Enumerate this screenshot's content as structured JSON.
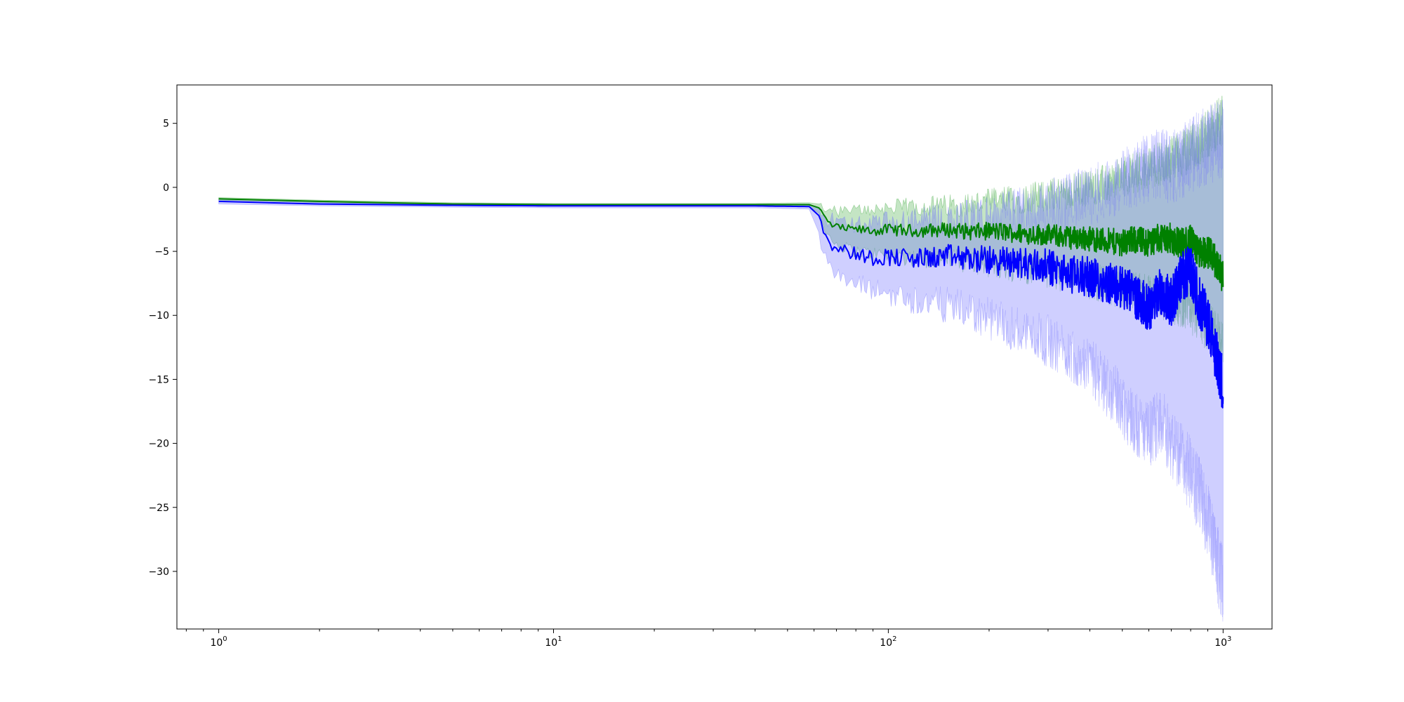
{
  "chart_data": {
    "type": "line",
    "title": "",
    "xlabel": "",
    "ylabel": "",
    "xscale": "log",
    "xlim": [
      0.75,
      1400
    ],
    "ylim": [
      -34.5,
      8.0
    ],
    "grid": false,
    "legend": "none",
    "x_ticks": [
      {
        "base": "10",
        "exp": "0",
        "value": 1
      },
      {
        "base": "10",
        "exp": "1",
        "value": 10
      },
      {
        "base": "10",
        "exp": "2",
        "value": 100
      },
      {
        "base": "10",
        "exp": "3",
        "value": 1000
      }
    ],
    "y_ticks": [
      {
        "label": "5",
        "value": 5
      },
      {
        "label": "0",
        "value": 0
      },
      {
        "label": "−5",
        "value": -5
      },
      {
        "label": "−10",
        "value": -10
      },
      {
        "label": "−15",
        "value": -15
      },
      {
        "label": "−20",
        "value": -20
      },
      {
        "label": "−25",
        "value": -25
      },
      {
        "label": "−30",
        "value": -30
      }
    ],
    "series": [
      {
        "color": "#008000",
        "band_color": "#2ca02c",
        "x": [
          1,
          2,
          5,
          10,
          20,
          40,
          58,
          62,
          65,
          68,
          72,
          80,
          90,
          100,
          120,
          150,
          180,
          200,
          250,
          300,
          350,
          400,
          450,
          500,
          550,
          600,
          650,
          700,
          750,
          800,
          850,
          900,
          950,
          1000
        ],
        "y": [
          -0.9,
          -1.1,
          -1.3,
          -1.35,
          -1.35,
          -1.35,
          -1.35,
          -1.6,
          -2.5,
          -3.0,
          -3.2,
          -3.3,
          -3.4,
          -3.3,
          -3.4,
          -3.3,
          -3.5,
          -3.4,
          -3.6,
          -3.7,
          -3.9,
          -4.0,
          -4.2,
          -4.3,
          -4.1,
          -4.3,
          -3.9,
          -4.0,
          -4.4,
          -4.2,
          -5.2,
          -5.0,
          -5.8,
          -7.0
        ],
        "lower": [
          -1.0,
          -1.2,
          -1.4,
          -1.45,
          -1.45,
          -1.45,
          -1.5,
          -2.0,
          -3.3,
          -4.2,
          -4.6,
          -5.0,
          -5.2,
          -5.3,
          -5.5,
          -5.6,
          -5.8,
          -6.0,
          -6.3,
          -6.6,
          -7.0,
          -7.3,
          -7.6,
          -8.0,
          -8.2,
          -8.5,
          -8.6,
          -8.8,
          -9.2,
          -9.5,
          -10.5,
          -10.8,
          -11.5,
          -12.5
        ],
        "upper": [
          -0.8,
          -1.0,
          -1.2,
          -1.25,
          -1.25,
          -1.25,
          -1.2,
          -1.3,
          -1.6,
          -1.8,
          -1.9,
          -1.8,
          -1.7,
          -1.6,
          -1.5,
          -1.4,
          -1.3,
          -1.1,
          -0.9,
          -0.6,
          -0.3,
          0.0,
          0.3,
          0.8,
          1.2,
          1.6,
          1.8,
          2.2,
          2.6,
          3.0,
          3.5,
          4.2,
          4.8,
          5.3
        ]
      },
      {
        "color": "#0000ff",
        "band_color": "#6b6bff",
        "x": [
          1,
          2,
          5,
          10,
          20,
          40,
          58,
          62,
          65,
          68,
          72,
          80,
          90,
          100,
          120,
          150,
          180,
          200,
          250,
          300,
          350,
          400,
          450,
          500,
          550,
          600,
          650,
          700,
          750,
          800,
          850,
          900,
          950,
          1000
        ],
        "y": [
          -1.1,
          -1.3,
          -1.4,
          -1.45,
          -1.45,
          -1.45,
          -1.5,
          -2.2,
          -3.8,
          -4.5,
          -4.8,
          -5.2,
          -5.5,
          -5.4,
          -5.6,
          -5.4,
          -5.6,
          -5.7,
          -5.9,
          -6.2,
          -6.8,
          -7.0,
          -7.4,
          -7.8,
          -8.5,
          -9.5,
          -8.0,
          -9.0,
          -7.0,
          -6.5,
          -9.0,
          -10.5,
          -13.0,
          -15.5
        ],
        "lower": [
          -1.3,
          -1.45,
          -1.55,
          -1.6,
          -1.6,
          -1.6,
          -1.7,
          -3.5,
          -5.6,
          -6.6,
          -7.2,
          -7.6,
          -8.0,
          -8.3,
          -8.8,
          -9.2,
          -9.8,
          -10.3,
          -11.2,
          -12.0,
          -13.0,
          -14.0,
          -15.5,
          -17.0,
          -18.5,
          -19.5,
          -18.0,
          -20.0,
          -21.0,
          -22.5,
          -24.0,
          -26.0,
          -29.0,
          -31.0
        ],
        "upper": [
          -0.9,
          -1.15,
          -1.25,
          -1.3,
          -1.3,
          -1.3,
          -1.3,
          -1.6,
          -2.4,
          -2.6,
          -2.8,
          -2.9,
          -3.0,
          -2.9,
          -2.8,
          -2.6,
          -2.4,
          -2.2,
          -1.8,
          -1.4,
          -1.0,
          -0.6,
          -0.2,
          0.4,
          1.0,
          1.6,
          1.8,
          1.5,
          2.0,
          2.5,
          3.0,
          3.3,
          3.6,
          4.0
        ]
      }
    ]
  }
}
